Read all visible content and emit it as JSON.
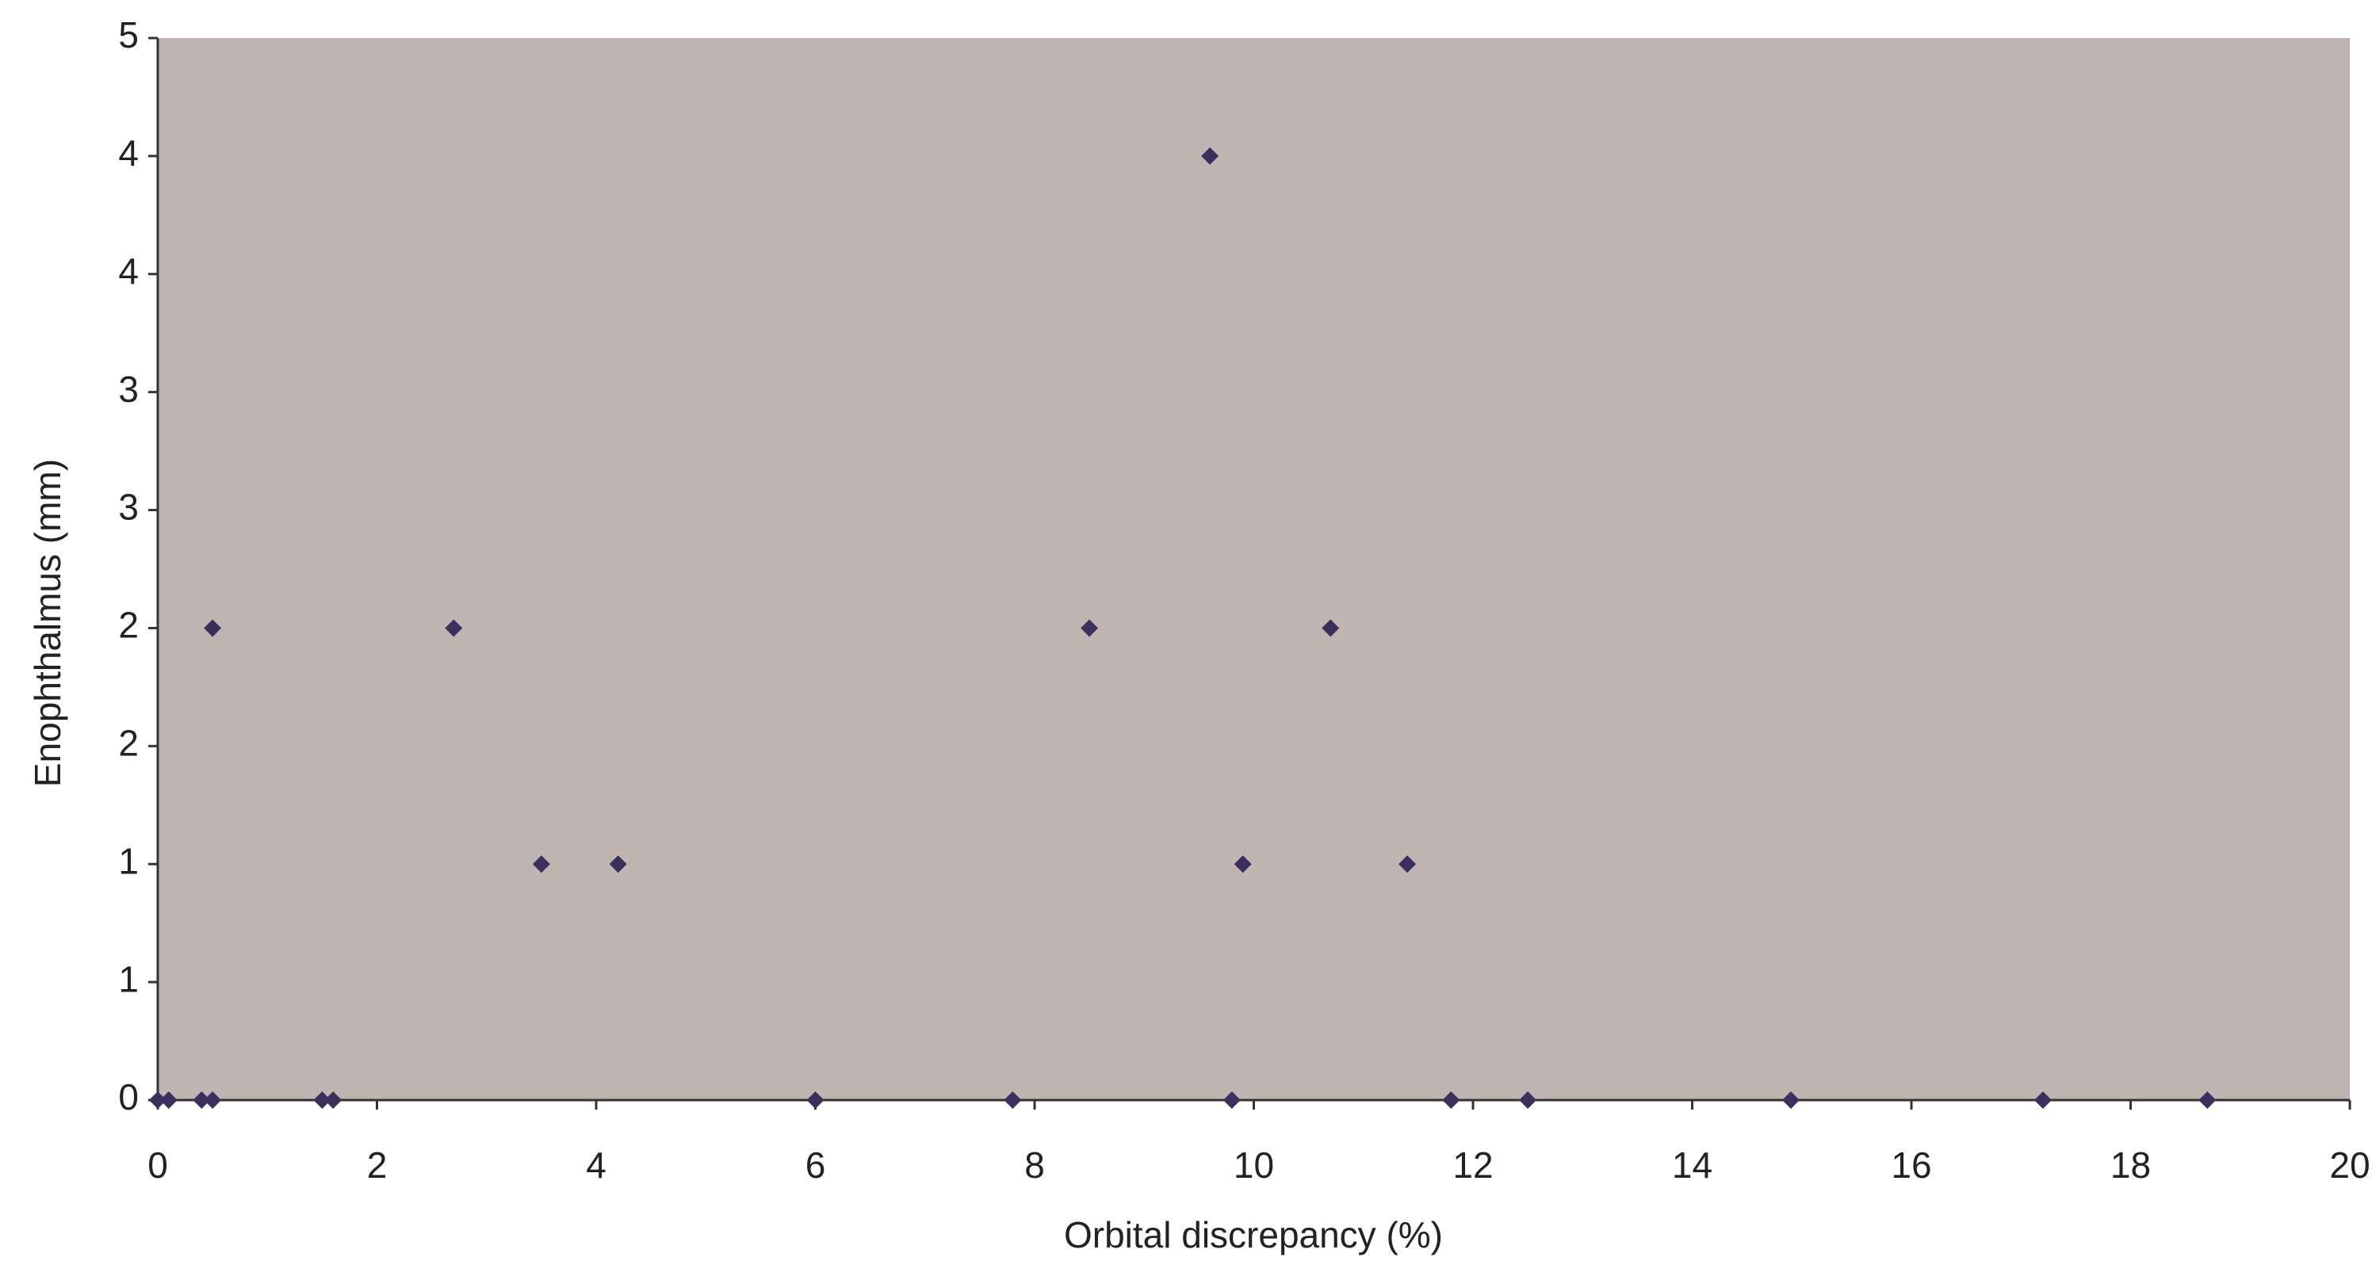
{
  "chart_data": {
    "type": "scatter",
    "xlabel": "Orbital discrepancy (%)",
    "ylabel": "Enophthalmus (mm)",
    "x": [
      0,
      0.1,
      0.4,
      0.5,
      1.5,
      1.6,
      6.0,
      7.8,
      9.8,
      11.8,
      12.5,
      14.9,
      17.2,
      18.7,
      0.5,
      2.7,
      8.5,
      10.7,
      3.5,
      4.2,
      9.9,
      11.4,
      9.6
    ],
    "values": [
      0,
      0,
      0,
      0,
      0,
      0,
      0,
      0,
      0,
      0,
      0,
      0,
      0,
      0,
      2.2222,
      2.2222,
      2.2222,
      2.2222,
      1.1111,
      1.1111,
      1.1111,
      1.1111,
      4.4444
    ],
    "color": "#3b2f5e",
    "background": "#c1b5b1",
    "xlim": [
      0,
      20
    ],
    "xticks": [
      0,
      2,
      4,
      6,
      8,
      10,
      12,
      14,
      16,
      18,
      20
    ],
    "ylim": [
      0,
      5
    ],
    "yticks": [
      0,
      {
        "value": 0.5556,
        "label": "1"
      },
      {
        "value": 1.1111,
        "label": "1"
      },
      {
        "value": 1.6667,
        "label": "2"
      },
      {
        "value": 2.2222,
        "label": "2"
      },
      {
        "value": 2.7778,
        "label": "3"
      },
      {
        "value": 3.3333,
        "label": "3"
      },
      {
        "value": 3.8889,
        "label": "4"
      },
      {
        "value": 4.4444,
        "label": "4"
      },
      5
    ]
  }
}
